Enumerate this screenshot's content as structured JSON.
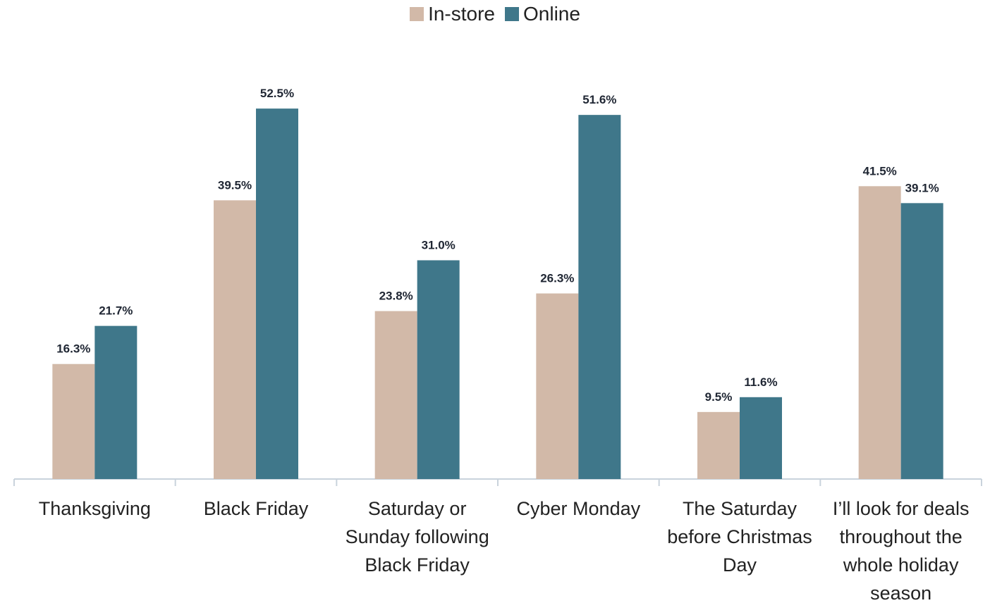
{
  "chart_data": {
    "type": "bar",
    "categories": [
      "Thanksgiving",
      "Black Friday",
      "Saturday or Sunday following Black Friday",
      "Cyber Monday",
      "The Saturday before Christmas Day",
      "I’ll look for deals throughout the whole holiday season"
    ],
    "series": [
      {
        "name": "In-store",
        "color": "#d2b9a8",
        "values": [
          16.3,
          39.5,
          23.8,
          26.3,
          9.5,
          41.5
        ],
        "value_labels": [
          "16.3%",
          "39.5%",
          "23.8%",
          "26.3%",
          "9.5%",
          "41.5%"
        ]
      },
      {
        "name": "Online",
        "color": "#3f778a",
        "values": [
          21.7,
          52.5,
          31.0,
          51.6,
          11.6,
          39.1
        ],
        "value_labels": [
          "21.7%",
          "52.5%",
          "31.0%",
          "51.6%",
          "11.6%",
          "39.1%"
        ]
      }
    ],
    "ylim": [
      0,
      60
    ],
    "legend": "top"
  }
}
